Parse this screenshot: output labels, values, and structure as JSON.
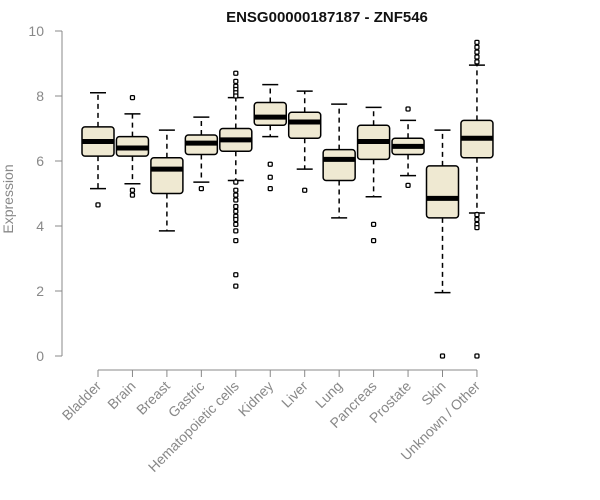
{
  "chart_data": {
    "type": "box",
    "title": "ENSG00000187187 - ZNF546",
    "ylabel": "Expression",
    "xlabel": "",
    "ylim": [
      0,
      10
    ],
    "yticks": [
      0,
      2,
      4,
      6,
      8,
      10
    ],
    "grid": false,
    "colors": {
      "box_fill": "#efe9d2",
      "stroke": "#000000",
      "axis": "#888888"
    },
    "categories": [
      "Bladder",
      "Brain",
      "Breast",
      "Gastric",
      "Hematopoietic cells",
      "Kidney",
      "Liver",
      "Lung",
      "Pancreas",
      "Prostate",
      "Skin",
      "Unknown / Other"
    ],
    "boxes": [
      {
        "category": "Bladder",
        "q1": 6.15,
        "median": 6.6,
        "q3": 7.05,
        "whisker_low": 5.15,
        "whisker_high": 8.1,
        "outliers": [
          4.65
        ]
      },
      {
        "category": "Brain",
        "q1": 6.15,
        "median": 6.4,
        "q3": 6.75,
        "whisker_low": 5.3,
        "whisker_high": 7.45,
        "outliers": [
          7.95,
          5.1,
          4.95
        ]
      },
      {
        "category": "Breast",
        "q1": 5.0,
        "median": 5.75,
        "q3": 6.1,
        "whisker_low": 3.85,
        "whisker_high": 6.95,
        "outliers": []
      },
      {
        "category": "Gastric",
        "q1": 6.2,
        "median": 6.55,
        "q3": 6.8,
        "whisker_low": 5.35,
        "whisker_high": 7.35,
        "outliers": [
          5.15
        ]
      },
      {
        "category": "Hematopoietic cells",
        "q1": 6.3,
        "median": 6.65,
        "q3": 7.0,
        "whisker_low": 5.4,
        "whisker_high": 7.95,
        "outliers": [
          8.7,
          8.45,
          8.3,
          8.2,
          8.1,
          8.0,
          5.35,
          5.1,
          4.95,
          4.8,
          4.6,
          4.45,
          4.3,
          4.2,
          4.05,
          3.85,
          3.55,
          2.5,
          2.15
        ]
      },
      {
        "category": "Kidney",
        "q1": 7.1,
        "median": 7.35,
        "q3": 7.8,
        "whisker_low": 6.75,
        "whisker_high": 8.35,
        "outliers": [
          5.9,
          5.5,
          5.15
        ]
      },
      {
        "category": "Liver",
        "q1": 6.7,
        "median": 7.2,
        "q3": 7.5,
        "whisker_low": 5.75,
        "whisker_high": 8.15,
        "outliers": [
          5.1
        ]
      },
      {
        "category": "Lung",
        "q1": 5.4,
        "median": 6.05,
        "q3": 6.35,
        "whisker_low": 4.25,
        "whisker_high": 7.75,
        "outliers": []
      },
      {
        "category": "Pancreas",
        "q1": 6.05,
        "median": 6.6,
        "q3": 7.1,
        "whisker_low": 4.9,
        "whisker_high": 7.65,
        "outliers": [
          4.05,
          3.55
        ]
      },
      {
        "category": "Prostate",
        "q1": 6.2,
        "median": 6.45,
        "q3": 6.7,
        "whisker_low": 5.55,
        "whisker_high": 7.25,
        "outliers": [
          7.6,
          5.25
        ]
      },
      {
        "category": "Skin",
        "q1": 4.25,
        "median": 4.85,
        "q3": 5.85,
        "whisker_low": 1.95,
        "whisker_high": 6.95,
        "outliers": [
          0.0
        ]
      },
      {
        "category": "Unknown / Other",
        "q1": 6.1,
        "median": 6.7,
        "q3": 7.25,
        "whisker_low": 4.4,
        "whisker_high": 8.95,
        "outliers": [
          9.65,
          9.5,
          9.35,
          9.2,
          9.05,
          4.35,
          4.2,
          4.05,
          3.95,
          0.0
        ]
      }
    ]
  }
}
